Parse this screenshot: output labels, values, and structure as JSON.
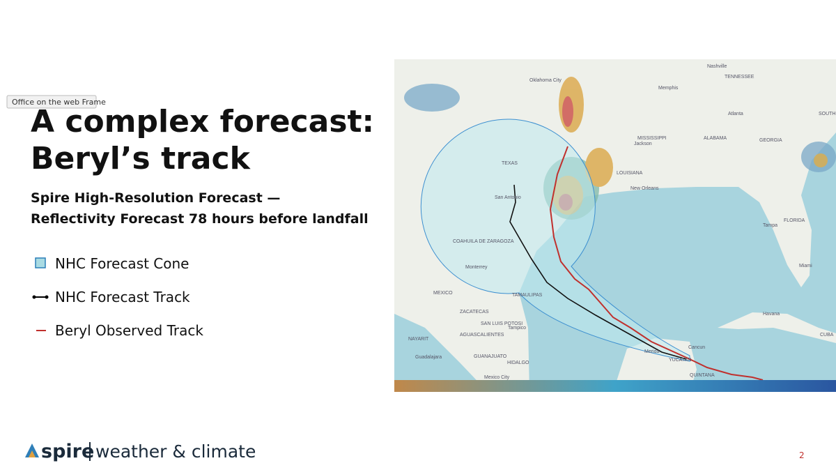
{
  "frame_tooltip": "Office on the web Frame",
  "slide": {
    "title_lines": [
      "A complex forecast:",
      "Beryl’s track"
    ],
    "subtitle_lines": [
      "Spire High-Resolution Forecast —",
      "Reflectivity Forecast 78 hours before landfall"
    ],
    "legend": [
      "NHC Forecast Cone",
      "NHC Forecast Track",
      "Beryl Observed Track"
    ],
    "map": {
      "labels": [
        "Nashville",
        "TENNESSEE",
        "Oklahoma City",
        "Memphis",
        "Atlanta",
        "MISSISSIPPI",
        "ALABAMA",
        "GEORGIA",
        "SOUTH CAROLINA",
        "Jackson",
        "LOUISIANA",
        "New Orleans",
        "TEXAS",
        "San Antonio",
        "Tampa",
        "FLORIDA",
        "Miami",
        "COAHUILA DE ZARAGOZA",
        "Monterrey",
        "MEXICO",
        "TAMAULIPAS",
        "ZACATECAS",
        "SAN LUIS POTOSI",
        "Tampico",
        "NAYARIT",
        "AGUASCALIENTES",
        "Guadalajara",
        "GUANAJUATO",
        "HIDALGO",
        "Mexico City",
        "Havana",
        "CUBA",
        "Cancun",
        "Merida",
        "YUCATAN",
        "QUINTANA"
      ]
    },
    "logo": {
      "brand": "spire",
      "tagline": "weather & climate"
    },
    "page_number": "2"
  }
}
